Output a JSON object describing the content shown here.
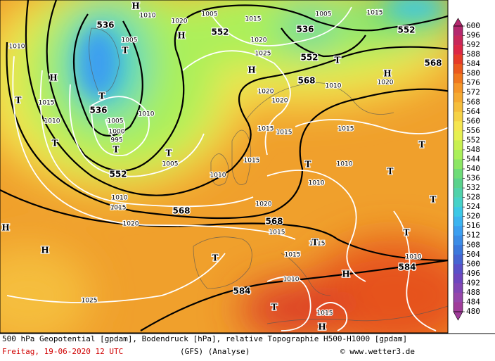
{
  "map": {
    "geopotential_labels": [
      "536",
      "552",
      "536",
      "552",
      "552",
      "568",
      "568",
      "536",
      "552",
      "568",
      "568",
      "584",
      "584"
    ],
    "pressure_labels": [
      "1010",
      "1020",
      "1005",
      "1015",
      "1005",
      "1015",
      "1010",
      "1005",
      "1020",
      "1025",
      "1010",
      "1020",
      "1020",
      "1020",
      "1015",
      "1010",
      "1010",
      "1005",
      "1000",
      "995",
      "1005",
      "1010",
      "1015",
      "1015",
      "1015",
      "1015",
      "1010",
      "1010",
      "1010",
      "1015",
      "1020",
      "1020",
      "1015",
      "1015",
      "1015",
      "1010",
      "1010",
      "1025",
      "1015"
    ],
    "high_low_markers": [
      "H",
      "H",
      "H",
      "H",
      "H",
      "H",
      "H",
      "H",
      "H",
      "T",
      "T",
      "T",
      "T",
      "T",
      "T",
      "T",
      "T",
      "T",
      "T",
      "T",
      "T",
      "T",
      "T",
      "T"
    ],
    "colorbar": {
      "labels": [
        "600",
        "596",
        "592",
        "588",
        "584",
        "580",
        "576",
        "572",
        "568",
        "564",
        "560",
        "556",
        "552",
        "548",
        "544",
        "540",
        "536",
        "532",
        "528",
        "524",
        "520",
        "516",
        "512",
        "508",
        "504",
        "500",
        "496",
        "492",
        "488",
        "484",
        "480"
      ],
      "colors": [
        "#b4286e",
        "#c8285a",
        "#dc2846",
        "#e63c28",
        "#eb5a1e",
        "#f0781e",
        "#f59628",
        "#f5aa32",
        "#f5be3c",
        "#f5d246",
        "#f5e650",
        "#e6f050",
        "#c8f050",
        "#aaf05a",
        "#8ce664",
        "#6edc78",
        "#5ad28c",
        "#50d2aa",
        "#46d2c8",
        "#3cc8e6",
        "#3cb4f0",
        "#3c9ff0",
        "#3c8ce6",
        "#3c78dc",
        "#4664d2",
        "#5a50c8",
        "#6e46be",
        "#8246b4",
        "#9646aa",
        "#a03c9a"
      ]
    }
  },
  "footer": {
    "description": "500 hPa Geopotential [gpdam], Bodendruck [hPa], relative Topographie H500-H1000 [gpdam]",
    "date": "Freitag, 19-06-2020  12 UTC",
    "model": "(GFS)  (Analyse)",
    "credit": "© www.wetter3.de"
  }
}
